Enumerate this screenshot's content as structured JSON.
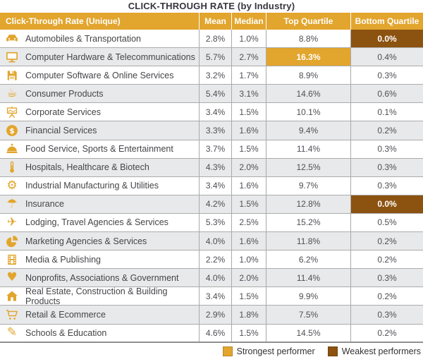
{
  "title": "CLICK-THROUGH RATE (by Industry)",
  "colors": {
    "amber": "#E2A52D",
    "brown": "#8C5210",
    "row_alt": "#E8E9EA",
    "border": "#A9A9A9",
    "header_text": "#FFFFFF",
    "title_text": "#35353D"
  },
  "table": {
    "columns": [
      "Click-Through Rate (Unique)",
      "Mean",
      "Median",
      "Top Quartile",
      "Bottom Quartile"
    ],
    "rows": [
      {
        "icon": "car-icon",
        "industry": "Automobiles & Transportation",
        "mean": "2.8%",
        "median": "1.0%",
        "top_quartile": "8.8%",
        "bottom_quartile": "0.0%",
        "highlight": {
          "column": "bottom_quartile",
          "type": "weakest"
        }
      },
      {
        "icon": "monitor-icon",
        "industry": "Computer Hardware & Telecommunications",
        "mean": "5.7%",
        "median": "2.7%",
        "top_quartile": "16.3%",
        "bottom_quartile": "0.4%",
        "highlight": {
          "column": "top_quartile",
          "type": "strongest"
        }
      },
      {
        "icon": "floppy-icon",
        "industry": "Computer Software & Online Services",
        "mean": "3.2%",
        "median": "1.7%",
        "top_quartile": "8.9%",
        "bottom_quartile": "0.3%",
        "highlight": null
      },
      {
        "icon": "mug-icon",
        "industry": "Consumer Products",
        "mean": "5.4%",
        "median": "3.1%",
        "top_quartile": "14.6%",
        "bottom_quartile": "0.6%",
        "highlight": null
      },
      {
        "icon": "presentation-icon",
        "industry": "Corporate Services",
        "mean": "3.4%",
        "median": "1.5%",
        "top_quartile": "10.1%",
        "bottom_quartile": "0.1%",
        "highlight": null
      },
      {
        "icon": "dollar-coin-icon",
        "industry": "Financial Services",
        "mean": "3.3%",
        "median": "1.6%",
        "top_quartile": "9.4%",
        "bottom_quartile": "0.2%",
        "highlight": null
      },
      {
        "icon": "cloche-icon",
        "industry": "Food Service, Sports & Entertainment",
        "mean": "3.7%",
        "median": "1.5%",
        "top_quartile": "11.4%",
        "bottom_quartile": "0.3%",
        "highlight": null
      },
      {
        "icon": "thermometer-icon",
        "industry": "Hospitals, Healthcare & Biotech",
        "mean": "4.3%",
        "median": "2.0%",
        "top_quartile": "12.5%",
        "bottom_quartile": "0.3%",
        "highlight": null
      },
      {
        "icon": "gear-icon",
        "industry": "Industrial Manufacturing & Utilities",
        "mean": "3.4%",
        "median": "1.6%",
        "top_quartile": "9.7%",
        "bottom_quartile": "0.3%",
        "highlight": null
      },
      {
        "icon": "umbrella-icon",
        "industry": "Insurance",
        "mean": "4.2%",
        "median": "1.5%",
        "top_quartile": "12.8%",
        "bottom_quartile": "0.0%",
        "highlight": {
          "column": "bottom_quartile",
          "type": "weakest"
        }
      },
      {
        "icon": "airplane-icon",
        "industry": "Lodging, Travel Agencies & Services",
        "mean": "5.3%",
        "median": "2.5%",
        "top_quartile": "15.2%",
        "bottom_quartile": "0.5%",
        "highlight": null
      },
      {
        "icon": "pie-chart-icon",
        "industry": "Marketing Agencies & Services",
        "mean": "4.0%",
        "median": "1.6%",
        "top_quartile": "11.8%",
        "bottom_quartile": "0.2%",
        "highlight": null
      },
      {
        "icon": "film-icon",
        "industry": "Media & Publishing",
        "mean": "2.2%",
        "median": "1.0%",
        "top_quartile": "6.2%",
        "bottom_quartile": "0.2%",
        "highlight": null
      },
      {
        "icon": "heart-icon",
        "industry": "Nonprofits, Associations & Government",
        "mean": "4.0%",
        "median": "2.0%",
        "top_quartile": "11.4%",
        "bottom_quartile": "0.3%",
        "highlight": null
      },
      {
        "icon": "house-icon",
        "industry": "Real Estate, Construction & Building Products",
        "mean": "3.4%",
        "median": "1.5%",
        "top_quartile": "9.9%",
        "bottom_quartile": "0.2%",
        "highlight": null
      },
      {
        "icon": "cart-icon",
        "industry": "Retail & Ecommerce",
        "mean": "2.9%",
        "median": "1.8%",
        "top_quartile": "7.5%",
        "bottom_quartile": "0.3%",
        "highlight": null
      },
      {
        "icon": "pencil-icon",
        "industry": "Schools & Education",
        "mean": "4.6%",
        "median": "1.5%",
        "top_quartile": "14.5%",
        "bottom_quartile": "0.2%",
        "highlight": null
      }
    ]
  },
  "legend": [
    {
      "label": "Strongest performer",
      "color": "#E2A52D"
    },
    {
      "label": "Weakest performers",
      "color": "#8C5210"
    }
  ],
  "chart_data": {
    "type": "table",
    "title": "CLICK-THROUGH RATE (by Industry)",
    "columns": [
      "Click-Through Rate (Unique)",
      "Mean",
      "Median",
      "Top Quartile",
      "Bottom Quartile"
    ],
    "units": "%",
    "rows": [
      [
        "Automobiles & Transportation",
        2.8,
        1.0,
        8.8,
        0.0
      ],
      [
        "Computer Hardware & Telecommunications",
        5.7,
        2.7,
        16.3,
        0.4
      ],
      [
        "Computer Software & Online Services",
        3.2,
        1.7,
        8.9,
        0.3
      ],
      [
        "Consumer Products",
        5.4,
        3.1,
        14.6,
        0.6
      ],
      [
        "Corporate Services",
        3.4,
        1.5,
        10.1,
        0.1
      ],
      [
        "Financial Services",
        3.3,
        1.6,
        9.4,
        0.2
      ],
      [
        "Food Service, Sports & Entertainment",
        3.7,
        1.5,
        11.4,
        0.3
      ],
      [
        "Hospitals, Healthcare & Biotech",
        4.3,
        2.0,
        12.5,
        0.3
      ],
      [
        "Industrial Manufacturing & Utilities",
        3.4,
        1.6,
        9.7,
        0.3
      ],
      [
        "Insurance",
        4.2,
        1.5,
        12.8,
        0.0
      ],
      [
        "Lodging, Travel Agencies & Services",
        5.3,
        2.5,
        15.2,
        0.5
      ],
      [
        "Marketing Agencies & Services",
        4.0,
        1.6,
        11.8,
        0.2
      ],
      [
        "Media & Publishing",
        2.2,
        1.0,
        6.2,
        0.2
      ],
      [
        "Nonprofits, Associations & Government",
        4.0,
        2.0,
        11.4,
        0.3
      ],
      [
        "Real Estate, Construction & Building Products",
        3.4,
        1.5,
        9.9,
        0.2
      ],
      [
        "Retail & Ecommerce",
        2.9,
        1.8,
        7.5,
        0.3
      ],
      [
        "Schools & Education",
        4.6,
        1.5,
        14.5,
        0.2
      ]
    ],
    "annotations": {
      "strongest_performer": {
        "row": "Computer Hardware & Telecommunications",
        "column": "Top Quartile",
        "value": 16.3
      },
      "weakest_performers": [
        {
          "row": "Automobiles & Transportation",
          "column": "Bottom Quartile",
          "value": 0.0
        },
        {
          "row": "Insurance",
          "column": "Bottom Quartile",
          "value": 0.0
        }
      ]
    }
  }
}
